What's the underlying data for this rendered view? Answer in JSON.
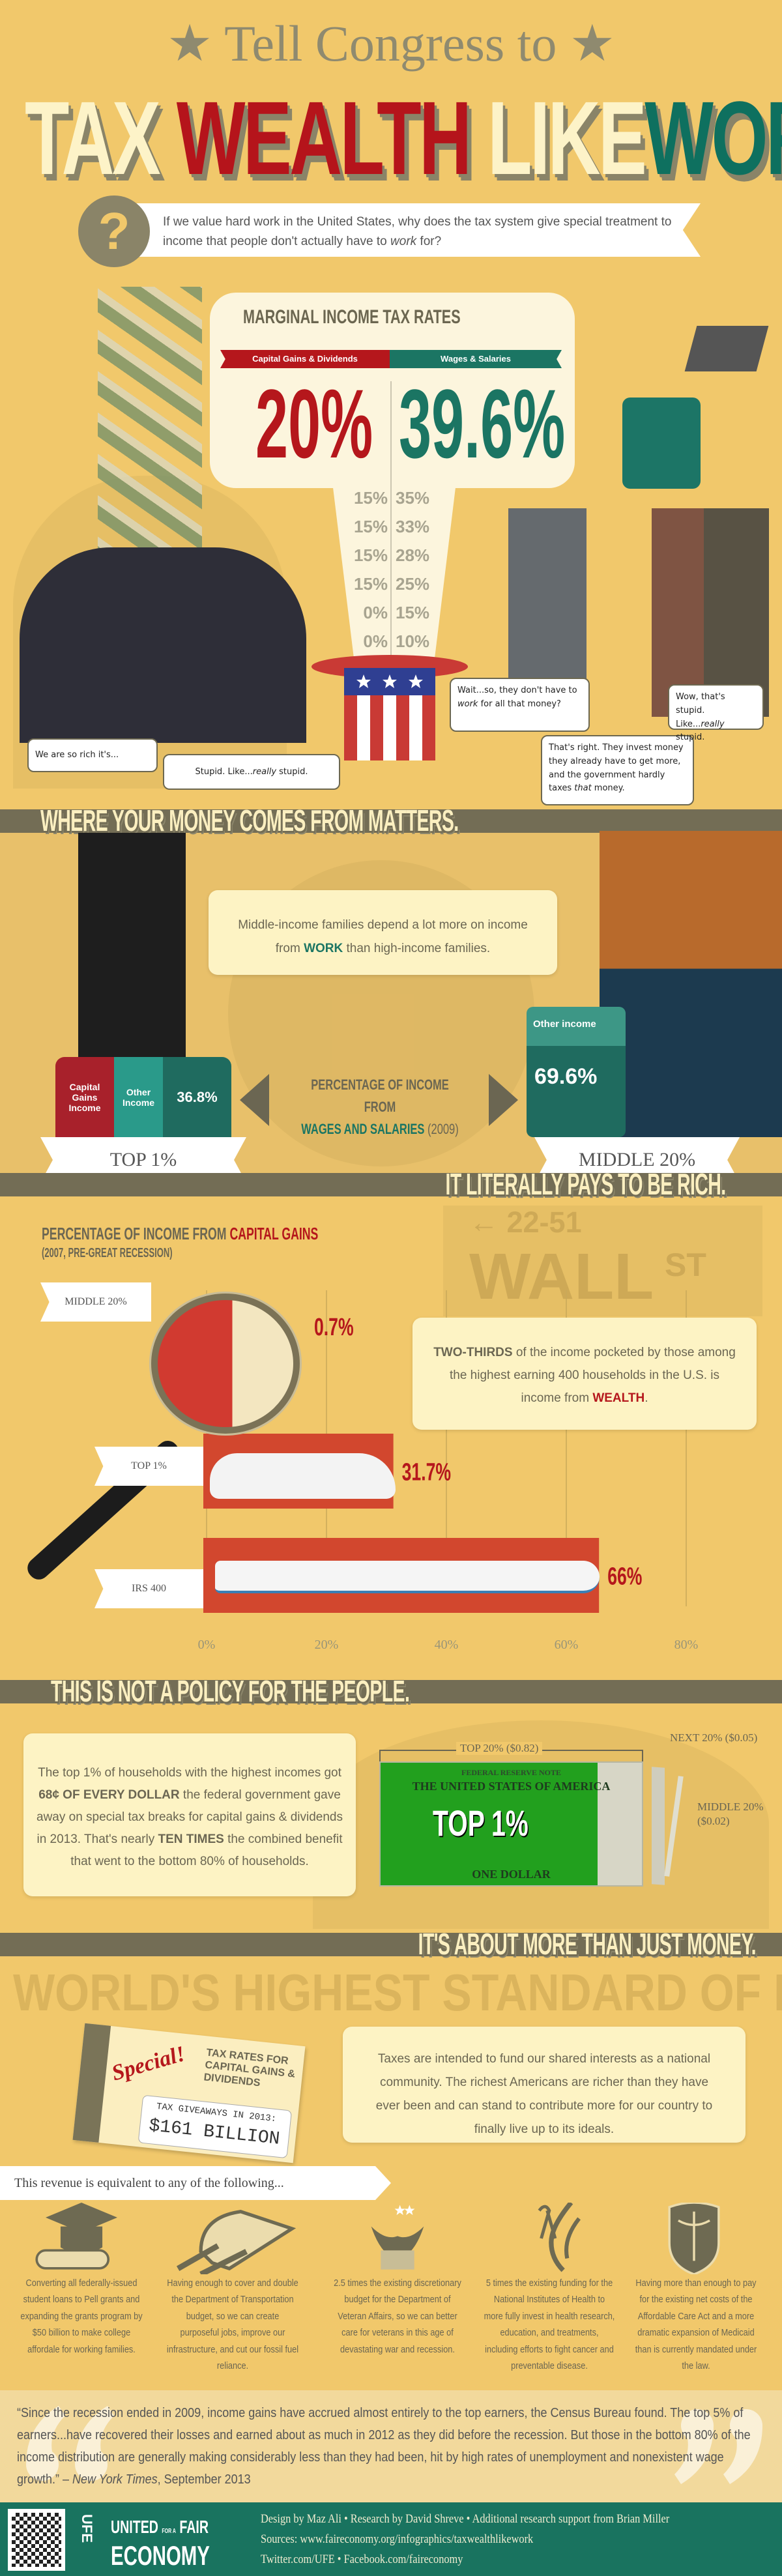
{
  "header": {
    "pre_title": "Tell Congress to",
    "title_words": [
      "TAX",
      "WEALTH",
      "LIKE",
      "WORK"
    ],
    "question_icon": "question-mark-icon",
    "question_text_a": "If we value hard work in the United States, why does the tax system give special treatment to income that people don't actually have to ",
    "question_text_em": "work",
    "question_text_b": " for?"
  },
  "tax_rates": {
    "title": "MARGINAL INCOME TAX RATES",
    "cap_label": "Capital Gains & Dividends",
    "wage_label": "Wages & Salaries",
    "cap_top": "20%",
    "wage_top": "39.6%",
    "cap_rates": [
      "15%",
      "15%",
      "15%",
      "15%",
      "0%",
      "0%"
    ],
    "wage_rates": [
      "35%",
      "33%",
      "28%",
      "25%",
      "15%",
      "10%"
    ]
  },
  "bubbles": {
    "rich1": "We are so rich it's...",
    "rich2_a": "Stupid. Like...",
    "rich2_em": "really",
    "rich2_b": " stupid.",
    "worker1_a": "Wait...so, they don't have to ",
    "worker1_em": "work",
    "worker1_b": " for all that money?",
    "worker2_a": "That's right. They invest money they already have to get more, and the government hardly taxes ",
    "worker2_em": "that",
    "worker2_b": " money.",
    "worker3_a": "Wow, that's stupid. Like...",
    "worker3_em": "really",
    "worker3_b": " stupid."
  },
  "section1": {
    "heading": "WHERE YOUR MONEY COMES FROM MATTERS.",
    "callout_a": "Middle-income families depend a lot more on income from ",
    "callout_strong": "WORK",
    "callout_b": " than high-income families.",
    "arrow_line1": "PERCENTAGE OF INCOME FROM",
    "arrow_line2": "WAGES AND SALARIES",
    "arrow_year": "(2009)",
    "top_seg_cap": "Capital Gains Income",
    "top_seg_other": "Other Income",
    "top_value": "36.8%",
    "mid_seg_other": "Other income",
    "mid_value": "69.6%",
    "top_label": "TOP 1%",
    "mid_label": "MIDDLE 20%"
  },
  "section2": {
    "heading": "IT LITERALLY PAYS TO BE RICH.",
    "bg_sign_num": "← 22-51",
    "bg_sign": "WALL",
    "bg_sign_st": "ST",
    "callout_strong": "TWO-THIRDS",
    "callout_a": " of the income pocketed by those among the highest earning 400 households in the U.S. is income from ",
    "callout_wealth": "WEALTH",
    "callout_end": "."
  },
  "chart_data": {
    "type": "bar",
    "orientation": "horizontal",
    "title_a": "PERCENTAGE OF INCOME FROM ",
    "title_b": "CAPITAL GAINS",
    "subtitle": "(2007, PRE-GREAT RECESSION)",
    "categories": [
      "MIDDLE 20%",
      "TOP 1%",
      "IRS 400"
    ],
    "values": [
      0.7,
      31.7,
      66
    ],
    "value_labels": [
      "0.7%",
      "31.7%",
      "66%"
    ],
    "xlim": [
      0,
      80
    ],
    "ticks": [
      "0%",
      "20%",
      "40%",
      "60%",
      "80%"
    ],
    "tick_values": [
      0,
      20,
      40,
      60,
      80
    ],
    "grid": true,
    "bar_color": "#d2472e",
    "label_color": "#b5171c"
  },
  "section3": {
    "heading": "THIS IS NOT A POLICY FOR THE PEOPLE.",
    "text_a": "The top 1% of households with the highest incomes got ",
    "text_strong1": "68¢ OF EVERY DOLLAR",
    "text_b": " the federal government gave away on special tax breaks for capital gains & dividends in 2013. That's nearly ",
    "text_strong2": "TEN TIMES",
    "text_c": " the combined benefit that went to the bottom 80% of households.",
    "top20_label": "TOP 20% ($0.82)",
    "next20_label": "NEXT 20% ($0.05)",
    "middle20_label_1": "MIDDLE 20%",
    "middle20_label_2": "($0.02)",
    "dollar_top_label": "TOP 1%",
    "dollar_header": "FEDERAL RESERVE NOTE",
    "dollar_title": "THE UNITED STATES OF AMERICA",
    "dollar_footer": "ONE DOLLAR",
    "top1_share": 0.68,
    "top20_share": 0.82
  },
  "section4": {
    "heading": "IT'S ABOUT MORE THAN JUST MONEY.",
    "bg_slogan": "WORLD'S HIGHEST STANDARD OF LIVING",
    "tag_special": "Special!",
    "tag_heading": "TAX RATES FOR CAPITAL GAINS & DIVIDENDS",
    "tag_sub": "TAX GIVEAWAYS IN 2013:",
    "tag_amount": "$161 BILLION",
    "callout": "Taxes are intended to fund our shared interests as a national community. The richest Americans are richer than they have ever been and can stand to contribute more for our country to finally live up to its ideals.",
    "banner": "This revenue is equivalent to any of the following...",
    "items": [
      {
        "icon": "graduation-cap-icon",
        "text": "Converting all federally-issued student loans to Pell grants and expanding the grants program by $50 billion to make college affordale for working families."
      },
      {
        "icon": "train-icon",
        "text": "Having enough to cover and double the Department of Transportation budget, so we can create purposeful jobs, improve our infrastructure, and cut our fossil fuel reliance."
      },
      {
        "icon": "veterans-eagle-icon",
        "text": "2.5 times the existing discretionary budget for the Department of Veteran Affairs, so we can better care for veterans in this age of devastating war and recession."
      },
      {
        "icon": "health-ribbon-icon",
        "text": "5 times the existing funding for the National Institutes of Health to more fully invest in health research, education, and treatments, including efforts to fight cancer and preventable disease."
      },
      {
        "icon": "caduceus-shield-icon",
        "text": "Having more than enough to pay for the existing net costs of the Affordable Care Act and a more dramatic expansion of Medicaid than is currently mandated under the law."
      }
    ]
  },
  "quote": {
    "text": "“Since the recession ended in 2009, income gains have accrued almost entirely to the top earners, the Census Bureau found. The top 5% of earners...have recovered their losses and earned about as much in 2012 as they did before the recession. But those in the bottom 80% of the income distribution are generally making considerably less than they had been, hit by high rates of unemployment and nonexistent wage growth.” – ",
    "source": "New York Times",
    "date": ", September 2013"
  },
  "footer": {
    "logo_top": "UNITED",
    "logo_for": "FOR A",
    "logo_fair": "FAIR",
    "logo_bottom": "ECONOMY",
    "logo_mark": "UFE",
    "credits": "Design by Maz Ali  •  Research by David Shreve  •  Additional research support from Brian Miller",
    "sources": "Sources: www.faireconomy.org/infographics/taxwealthlikework",
    "social_twitter": "Twitter.com/UFE",
    "social_facebook": "Facebook.com/faireconomy",
    "qr_icon": "qr-code-icon"
  },
  "colors": {
    "background": "#f1c86b",
    "olive": "#736d55",
    "red": "#b5171c",
    "green": "#1b7563",
    "cream": "#fdf3c4"
  }
}
